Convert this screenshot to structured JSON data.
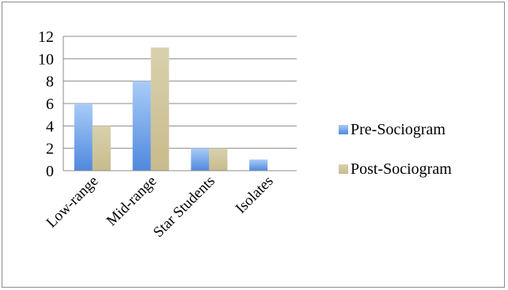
{
  "chart_data": {
    "type": "bar",
    "categories": [
      "Low-range",
      "Mid-range",
      "Star Students",
      "Isolates"
    ],
    "series": [
      {
        "name": "Pre-Sociogram",
        "values": [
          6,
          8,
          2,
          1
        ],
        "color": "#5b95e6"
      },
      {
        "name": "Post-Sociogram",
        "values": [
          4,
          11,
          2,
          0
        ],
        "color": "#cfc49a"
      }
    ],
    "ylim": [
      0,
      12
    ],
    "yticks": [
      0,
      2,
      4,
      6,
      8,
      10,
      12
    ],
    "grid": true,
    "legend": "right",
    "title": "",
    "xlabel": "",
    "ylabel": ""
  }
}
